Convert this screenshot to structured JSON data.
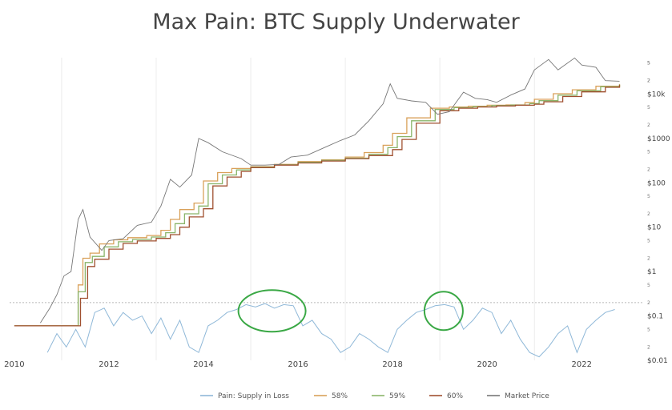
{
  "chart_data": {
    "type": "line",
    "title": "Max Pain: BTC Supply Underwater",
    "xlabel": "",
    "ylabel": "",
    "x_ticks": [
      "2010",
      "2012",
      "2014",
      "2016",
      "2018",
      "2020",
      "2022"
    ],
    "y_ticks_right": [
      "$10k",
      "$1000",
      "$100",
      "$10",
      "$1",
      "$0.1",
      "$0.01"
    ],
    "y_minor_tick_labels": [
      "5",
      "2"
    ],
    "y_scale": "log",
    "ylim": [
      0.01,
      100000
    ],
    "xlim": [
      2009.9,
      2023.3
    ],
    "legend": {
      "placement": "bottom",
      "entries": [
        "Pain: Supply in Loss",
        "58%",
        "59%",
        "60%",
        "Market Price"
      ]
    },
    "colors": {
      "pain": "#8fb8d8",
      "band58": "#d9a15a",
      "band59": "#8ab56a",
      "band60": "#a05030",
      "price": "#777777",
      "highlight": "#3aa845",
      "reference_line": "#b8b8b8"
    },
    "annotations": [
      {
        "type": "ellipse",
        "center_date": 2015.45,
        "center_value": 0.13,
        "note": "highlight circle"
      },
      {
        "type": "ellipse",
        "center_date": 2019.08,
        "center_value": 0.13,
        "note": "highlight circle"
      }
    ],
    "reference_line_value": 0.2,
    "series": [
      {
        "name": "Market Price",
        "x": [
          2010.55,
          2010.75,
          2010.9,
          2011.05,
          2011.2,
          2011.35,
          2011.45,
          2011.6,
          2011.85,
          2012.0,
          2012.3,
          2012.6,
          2012.9,
          2013.1,
          2013.3,
          2013.5,
          2013.75,
          2013.9,
          2014.1,
          2014.4,
          2014.8,
          2015.0,
          2015.3,
          2015.6,
          2015.85,
          2016.2,
          2016.6,
          2016.9,
          2017.2,
          2017.5,
          2017.8,
          2017.95,
          2018.1,
          2018.4,
          2018.7,
          2018.95,
          2019.2,
          2019.5,
          2019.75,
          2020.0,
          2020.2,
          2020.5,
          2020.8,
          2021.0,
          2021.3,
          2021.5,
          2021.85,
          2022.0,
          2022.3,
          2022.5,
          2022.8
        ],
        "values": [
          0.07,
          0.15,
          0.3,
          0.8,
          1.0,
          15,
          25,
          6,
          3,
          5,
          5.5,
          11,
          13,
          30,
          120,
          80,
          150,
          1000,
          800,
          500,
          350,
          250,
          250,
          260,
          380,
          420,
          650,
          900,
          1200,
          2500,
          6000,
          17000,
          8000,
          7000,
          6500,
          3500,
          4000,
          11000,
          8000,
          7500,
          6500,
          9500,
          13000,
          35000,
          60000,
          35000,
          65000,
          45000,
          40000,
          20000,
          19500
        ]
      },
      {
        "name": "58%",
        "x": [
          2010.0,
          2011.0,
          2011.2,
          2011.35,
          2011.45,
          2011.6,
          2011.8,
          2012.1,
          2012.4,
          2012.8,
          2013.1,
          2013.3,
          2013.5,
          2013.8,
          2014.0,
          2014.3,
          2014.6,
          2015.0,
          2015.5,
          2016.0,
          2016.5,
          2017.0,
          2017.4,
          2017.8,
          2018.0,
          2018.3,
          2018.8,
          2019.2,
          2019.6,
          2020.0,
          2020.4,
          2020.8,
          2021.0,
          2021.4,
          2021.8,
          2022.3,
          2022.8
        ],
        "values": [
          0.06,
          0.06,
          0.06,
          0.5,
          2.0,
          2.6,
          4.2,
          5.2,
          5.8,
          6.5,
          8.5,
          15,
          25,
          35,
          110,
          170,
          210,
          230,
          260,
          300,
          330,
          380,
          480,
          700,
          1300,
          2900,
          4800,
          5100,
          5300,
          5600,
          5700,
          6400,
          7600,
          10200,
          12500,
          15000,
          16800
        ]
      },
      {
        "name": "59%",
        "x": [
          2010.0,
          2011.0,
          2011.2,
          2011.35,
          2011.5,
          2011.65,
          2011.9,
          2012.2,
          2012.5,
          2012.9,
          2013.2,
          2013.4,
          2013.6,
          2013.9,
          2014.1,
          2014.4,
          2014.7,
          2015.0,
          2015.5,
          2016.0,
          2016.5,
          2017.0,
          2017.5,
          2017.9,
          2018.1,
          2018.4,
          2018.9,
          2019.3,
          2019.7,
          2020.1,
          2020.5,
          2020.9,
          2021.1,
          2021.5,
          2021.9,
          2022.4,
          2022.8
        ],
        "values": [
          0.06,
          0.06,
          0.06,
          0.35,
          1.6,
          2.2,
          3.6,
          4.7,
          5.3,
          6.0,
          7.5,
          12,
          20,
          30,
          95,
          150,
          195,
          225,
          255,
          290,
          320,
          360,
          440,
          620,
          1100,
          2500,
          4500,
          4950,
          5200,
          5500,
          5650,
          6100,
          7100,
          9400,
          11800,
          14600,
          16400
        ]
      },
      {
        "name": "60%",
        "x": [
          2010.0,
          2011.0,
          2011.25,
          2011.4,
          2011.55,
          2011.7,
          2012.0,
          2012.3,
          2012.6,
          2013.0,
          2013.3,
          2013.5,
          2013.7,
          2014.0,
          2014.2,
          2014.5,
          2014.8,
          2015.0,
          2015.5,
          2016.0,
          2016.5,
          2017.0,
          2017.5,
          2018.0,
          2018.2,
          2018.5,
          2019.0,
          2019.4,
          2019.8,
          2020.2,
          2020.6,
          2021.0,
          2021.2,
          2021.6,
          2022.0,
          2022.5,
          2022.8
        ],
        "values": [
          0.06,
          0.06,
          0.06,
          0.25,
          1.3,
          1.9,
          3.2,
          4.3,
          4.9,
          5.6,
          6.8,
          10,
          17,
          26,
          85,
          135,
          180,
          220,
          250,
          280,
          310,
          350,
          410,
          560,
          950,
          2200,
          4200,
          4800,
          5100,
          5400,
          5600,
          5900,
          6700,
          8800,
          11200,
          14200,
          16000
        ]
      },
      {
        "name": "Pain: Supply in Loss",
        "x": [
          2010.7,
          2010.9,
          2011.1,
          2011.3,
          2011.5,
          2011.7,
          2011.9,
          2012.1,
          2012.3,
          2012.5,
          2012.7,
          2012.9,
          2013.1,
          2013.3,
          2013.5,
          2013.7,
          2013.9,
          2014.1,
          2014.3,
          2014.5,
          2014.7,
          2014.9,
          2015.1,
          2015.3,
          2015.5,
          2015.7,
          2015.9,
          2016.1,
          2016.3,
          2016.5,
          2016.7,
          2016.9,
          2017.1,
          2017.3,
          2017.5,
          2017.7,
          2017.9,
          2018.1,
          2018.3,
          2018.5,
          2018.7,
          2018.9,
          2019.1,
          2019.3,
          2019.5,
          2019.7,
          2019.9,
          2020.1,
          2020.3,
          2020.5,
          2020.7,
          2020.9,
          2021.1,
          2021.3,
          2021.5,
          2021.7,
          2021.9,
          2022.1,
          2022.3,
          2022.5,
          2022.7
        ],
        "values": [
          0.015,
          0.04,
          0.02,
          0.05,
          0.02,
          0.12,
          0.15,
          0.06,
          0.12,
          0.08,
          0.1,
          0.04,
          0.09,
          0.03,
          0.08,
          0.02,
          0.015,
          0.06,
          0.08,
          0.12,
          0.14,
          0.18,
          0.16,
          0.19,
          0.15,
          0.18,
          0.17,
          0.06,
          0.08,
          0.04,
          0.03,
          0.015,
          0.02,
          0.04,
          0.03,
          0.02,
          0.015,
          0.05,
          0.08,
          0.12,
          0.14,
          0.17,
          0.18,
          0.16,
          0.05,
          0.08,
          0.15,
          0.12,
          0.04,
          0.08,
          0.03,
          0.015,
          0.012,
          0.02,
          0.04,
          0.06,
          0.015,
          0.05,
          0.08,
          0.12,
          0.14
        ]
      }
    ]
  }
}
